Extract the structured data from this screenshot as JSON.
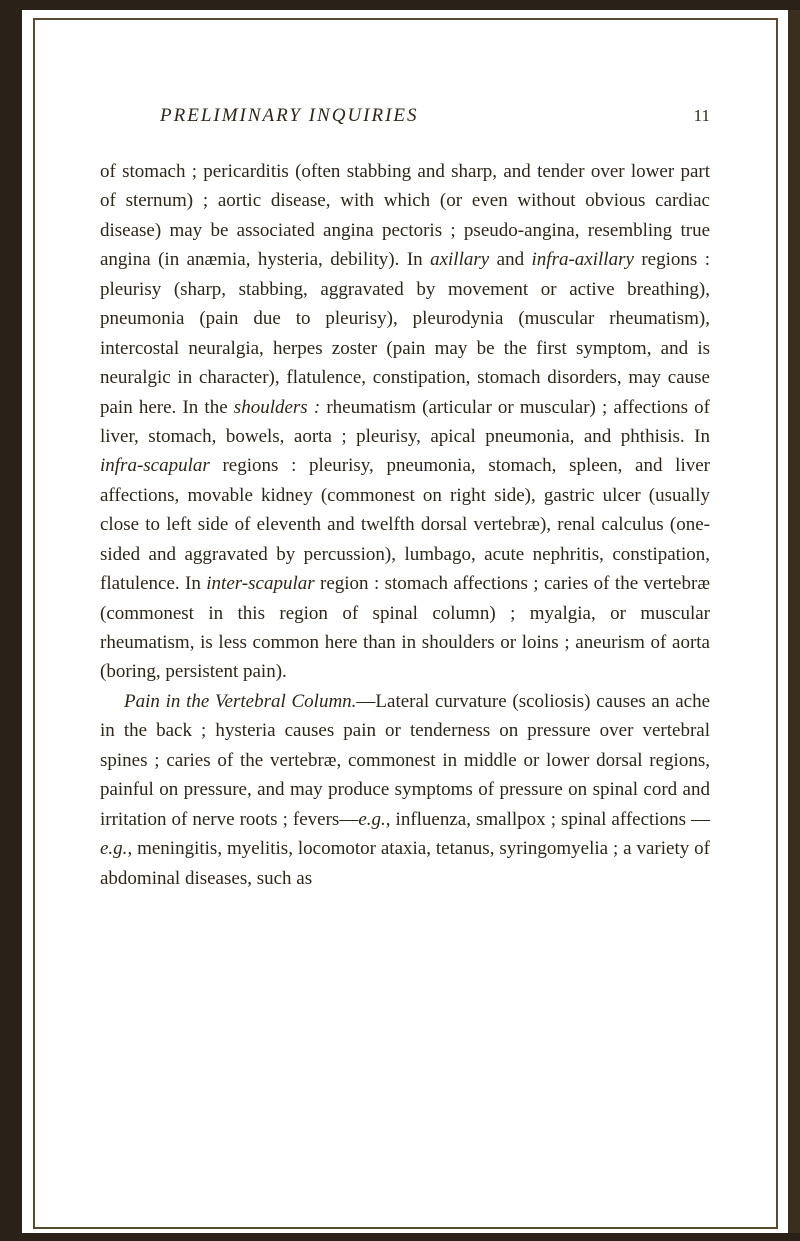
{
  "colors": {
    "background": "#ffffff",
    "text": "#2e2618",
    "outer_border": "#2a2218",
    "inner_border": "#5a4a32"
  },
  "typography": {
    "font_family": "Georgia, 'Times New Roman', serif",
    "body_fontsize": 19,
    "header_fontsize": 19,
    "line_height": 1.55
  },
  "header": {
    "title": "PRELIMINARY INQUIRIES",
    "page_number": "11"
  },
  "paragraphs": {
    "p1_html": "of stomach ; pericarditis (often stabbing and sharp, and tender over lower part of sternum) ; aortic disease, with which (or even without obvious cardiac disease) may be associated angina pectoris ; pseudo-angina, resembling true angina (in anæmia, hysteria, debility). In <em>axillary</em> and <em>infra-axillary</em> regions : pleurisy (sharp, stabbing, aggravated by movement or active breathing), pneumonia (pain due to pleurisy), pleurodynia (muscular rheumatism), intercostal neuralgia, herpes zoster (pain may be the first symptom, and is neuralgic in character), flatulence, constipation, stomach disorders, may cause pain here. In the <em>shoulders :</em> rheumatism (articular or muscular) ; affections of liver, stomach, bowels, aorta ; pleurisy, apical pneumonia, and phthisis. In <em>infra-scapular</em> regions : pleurisy, pneumonia, stomach, spleen, and liver affections, movable kidney (commonest on right side), gastric ulcer (usually close to left side of eleventh and twelfth dorsal vertebræ), renal calculus (one-sided and aggravated by percussion), lumbago, acute nephritis, constipation, flatulence. In <em>inter-scapular</em> region : stomach affections ; caries of the vertebræ (commonest in this region of spinal column) ; myalgia, or muscular rheumatism, is less common here than in shoulders or loins ; aneurism of aorta (boring, persistent pain).",
    "p2_html": "<em>Pain in the Vertebral Column.</em>—Lateral curvature (scoliosis) causes an ache in the back ; hysteria causes pain or tenderness on pressure over vertebral spines ; caries of the vertebræ, commonest in middle or lower dorsal regions, painful on pressure, and may produce symptoms of pressure on spinal cord and irritation of nerve roots ; fevers—<em>e.g.</em>, influenza, smallpox ; spinal affections —<em>e.g.</em>, meningitis, myelitis, locomotor ataxia, tetanus, syringomyelia ; a variety of abdominal diseases, such as"
  }
}
